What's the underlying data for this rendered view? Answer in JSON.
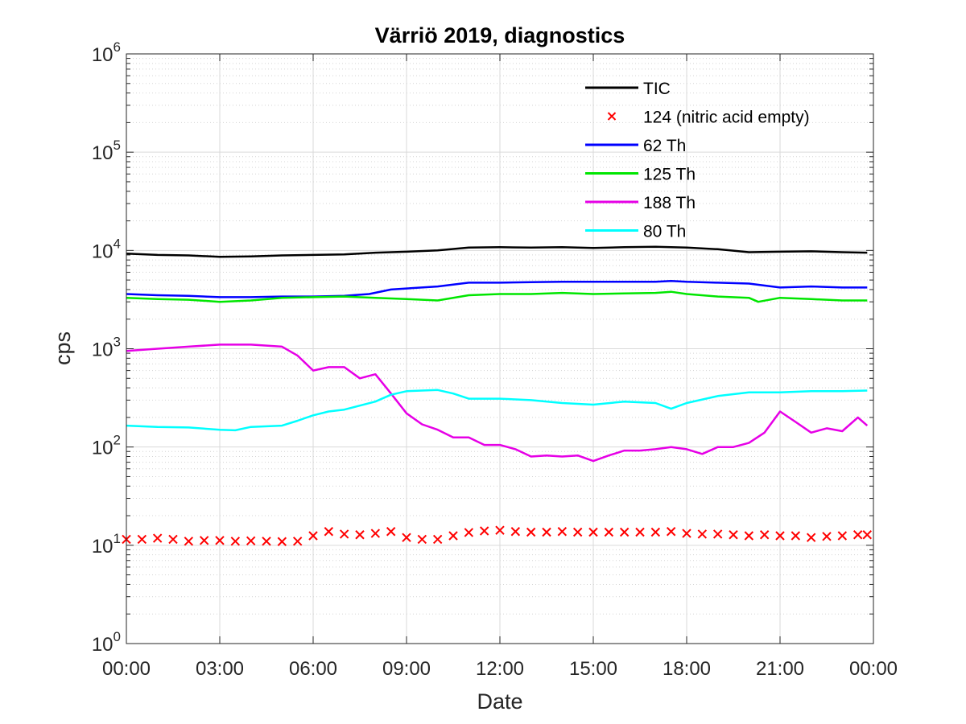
{
  "chart_data": {
    "type": "line",
    "title": "Värriö 2019, diagnostics",
    "xlabel": "Date",
    "ylabel": "cps",
    "y_scale": "log",
    "ylim": [
      1,
      1000000
    ],
    "xlim": [
      "00:00",
      "24:00"
    ],
    "x_ticks": [
      "00:00",
      "03:00",
      "06:00",
      "09:00",
      "12:00",
      "15:00",
      "18:00",
      "21:00",
      "00:00"
    ],
    "y_ticks": [
      {
        "base": "10",
        "exp": "0",
        "value": 1
      },
      {
        "base": "10",
        "exp": "1",
        "value": 10
      },
      {
        "base": "10",
        "exp": "2",
        "value": 100
      },
      {
        "base": "10",
        "exp": "3",
        "value": 1000
      },
      {
        "base": "10",
        "exp": "4",
        "value": 10000
      },
      {
        "base": "10",
        "exp": "5",
        "value": 100000
      },
      {
        "base": "10",
        "exp": "6",
        "value": 1000000
      }
    ],
    "grid": true,
    "legend_position": "top-right",
    "x_unit": "hours since 00:00",
    "series": [
      {
        "name": "TIC",
        "color": "#000000",
        "style": "line",
        "x": [
          0,
          1,
          2,
          3,
          4,
          5,
          6,
          7,
          8,
          9,
          10,
          11,
          12,
          13,
          14,
          15,
          16,
          17,
          18,
          19,
          20,
          21,
          22,
          23,
          23.8
        ],
        "y": [
          9300,
          9000,
          8900,
          8600,
          8700,
          8900,
          9000,
          9100,
          9500,
          9700,
          10000,
          10700,
          10800,
          10700,
          10800,
          10600,
          10800,
          10900,
          10700,
          10300,
          9600,
          9700,
          9800,
          9600,
          9500
        ]
      },
      {
        "name": "124 (nitric acid empty)",
        "color": "#ff0000",
        "style": "markers",
        "x": [
          0,
          0.5,
          1,
          1.5,
          2,
          2.5,
          3,
          3.5,
          4,
          4.5,
          5,
          5.5,
          6,
          6.5,
          7,
          7.5,
          8,
          8.5,
          9,
          9.5,
          10,
          10.5,
          11,
          11.5,
          12,
          12.5,
          13,
          13.5,
          14,
          14.5,
          15,
          15.5,
          16,
          16.5,
          17,
          17.5,
          18,
          18.5,
          19,
          19.5,
          20,
          20.5,
          21,
          21.5,
          22,
          22.5,
          23,
          23.5,
          23.8
        ],
        "y": [
          11.5,
          11.5,
          11.8,
          11.5,
          11.0,
          11.2,
          11.2,
          11.0,
          11.1,
          11.0,
          10.9,
          11.0,
          12.5,
          13.8,
          13.0,
          12.8,
          13.2,
          13.8,
          12.0,
          11.5,
          11.5,
          12.5,
          13.5,
          14.0,
          14.2,
          13.8,
          13.6,
          13.6,
          13.8,
          13.6,
          13.6,
          13.6,
          13.6,
          13.6,
          13.6,
          13.8,
          13.2,
          13.0,
          13.0,
          12.8,
          12.5,
          12.8,
          12.5,
          12.5,
          12.0,
          12.3,
          12.5,
          12.8,
          12.8
        ]
      },
      {
        "name": "62 Th",
        "color": "#0000ff",
        "style": "line",
        "x": [
          0,
          1,
          2,
          3,
          4,
          5,
          6,
          7,
          7.8,
          8.5,
          9,
          10,
          11,
          12,
          13,
          14,
          15,
          16,
          17,
          17.5,
          18,
          19,
          20,
          21,
          22,
          23,
          23.8
        ],
        "y": [
          3600,
          3500,
          3450,
          3350,
          3350,
          3400,
          3400,
          3450,
          3600,
          4000,
          4100,
          4300,
          4700,
          4700,
          4750,
          4800,
          4800,
          4800,
          4800,
          4900,
          4800,
          4700,
          4600,
          4200,
          4300,
          4200,
          4200
        ]
      },
      {
        "name": "125 Th",
        "color": "#00e600",
        "style": "line",
        "x": [
          0,
          1,
          2,
          3,
          4,
          5,
          6,
          7,
          8,
          9,
          10,
          11,
          12,
          13,
          14,
          15,
          16,
          17,
          17.5,
          18,
          19,
          20,
          20.3,
          21,
          22,
          23,
          23.8
        ],
        "y": [
          3300,
          3200,
          3150,
          3000,
          3100,
          3300,
          3350,
          3400,
          3300,
          3200,
          3100,
          3500,
          3600,
          3600,
          3700,
          3600,
          3650,
          3700,
          3800,
          3600,
          3400,
          3300,
          3000,
          3300,
          3200,
          3100,
          3100
        ]
      },
      {
        "name": "188 Th",
        "color": "#e600e6",
        "style": "line",
        "x": [
          0,
          1,
          2,
          3,
          4,
          5,
          5.5,
          6,
          6.5,
          7,
          7.5,
          8,
          8.5,
          9,
          9.5,
          10,
          10.5,
          11,
          11.5,
          12,
          12.5,
          13,
          13.5,
          14,
          14.5,
          15,
          15.5,
          16,
          16.5,
          17,
          17.5,
          18,
          18.5,
          19,
          19.5,
          20,
          20.5,
          21,
          21.5,
          22,
          22.5,
          23,
          23.5,
          23.8
        ],
        "y": [
          950,
          1000,
          1050,
          1100,
          1100,
          1050,
          850,
          600,
          650,
          650,
          500,
          550,
          350,
          220,
          170,
          150,
          125,
          125,
          105,
          105,
          95,
          80,
          82,
          80,
          82,
          72,
          82,
          92,
          92,
          95,
          100,
          95,
          85,
          100,
          100,
          110,
          140,
          230,
          180,
          140,
          155,
          145,
          200,
          165
        ]
      },
      {
        "name": "80 Th",
        "color": "#00ffff",
        "style": "line",
        "x": [
          0,
          1,
          2,
          3,
          3.5,
          4,
          5,
          5.5,
          6,
          6.5,
          7,
          8,
          8.5,
          9,
          10,
          10.5,
          11,
          12,
          13,
          14,
          15,
          16,
          17,
          17.5,
          18,
          19,
          20,
          21,
          22,
          23,
          23.8
        ],
        "y": [
          165,
          160,
          158,
          150,
          148,
          160,
          165,
          185,
          210,
          230,
          240,
          290,
          340,
          370,
          380,
          350,
          310,
          310,
          300,
          280,
          270,
          290,
          280,
          245,
          280,
          330,
          360,
          360,
          370,
          370,
          375
        ]
      }
    ]
  }
}
